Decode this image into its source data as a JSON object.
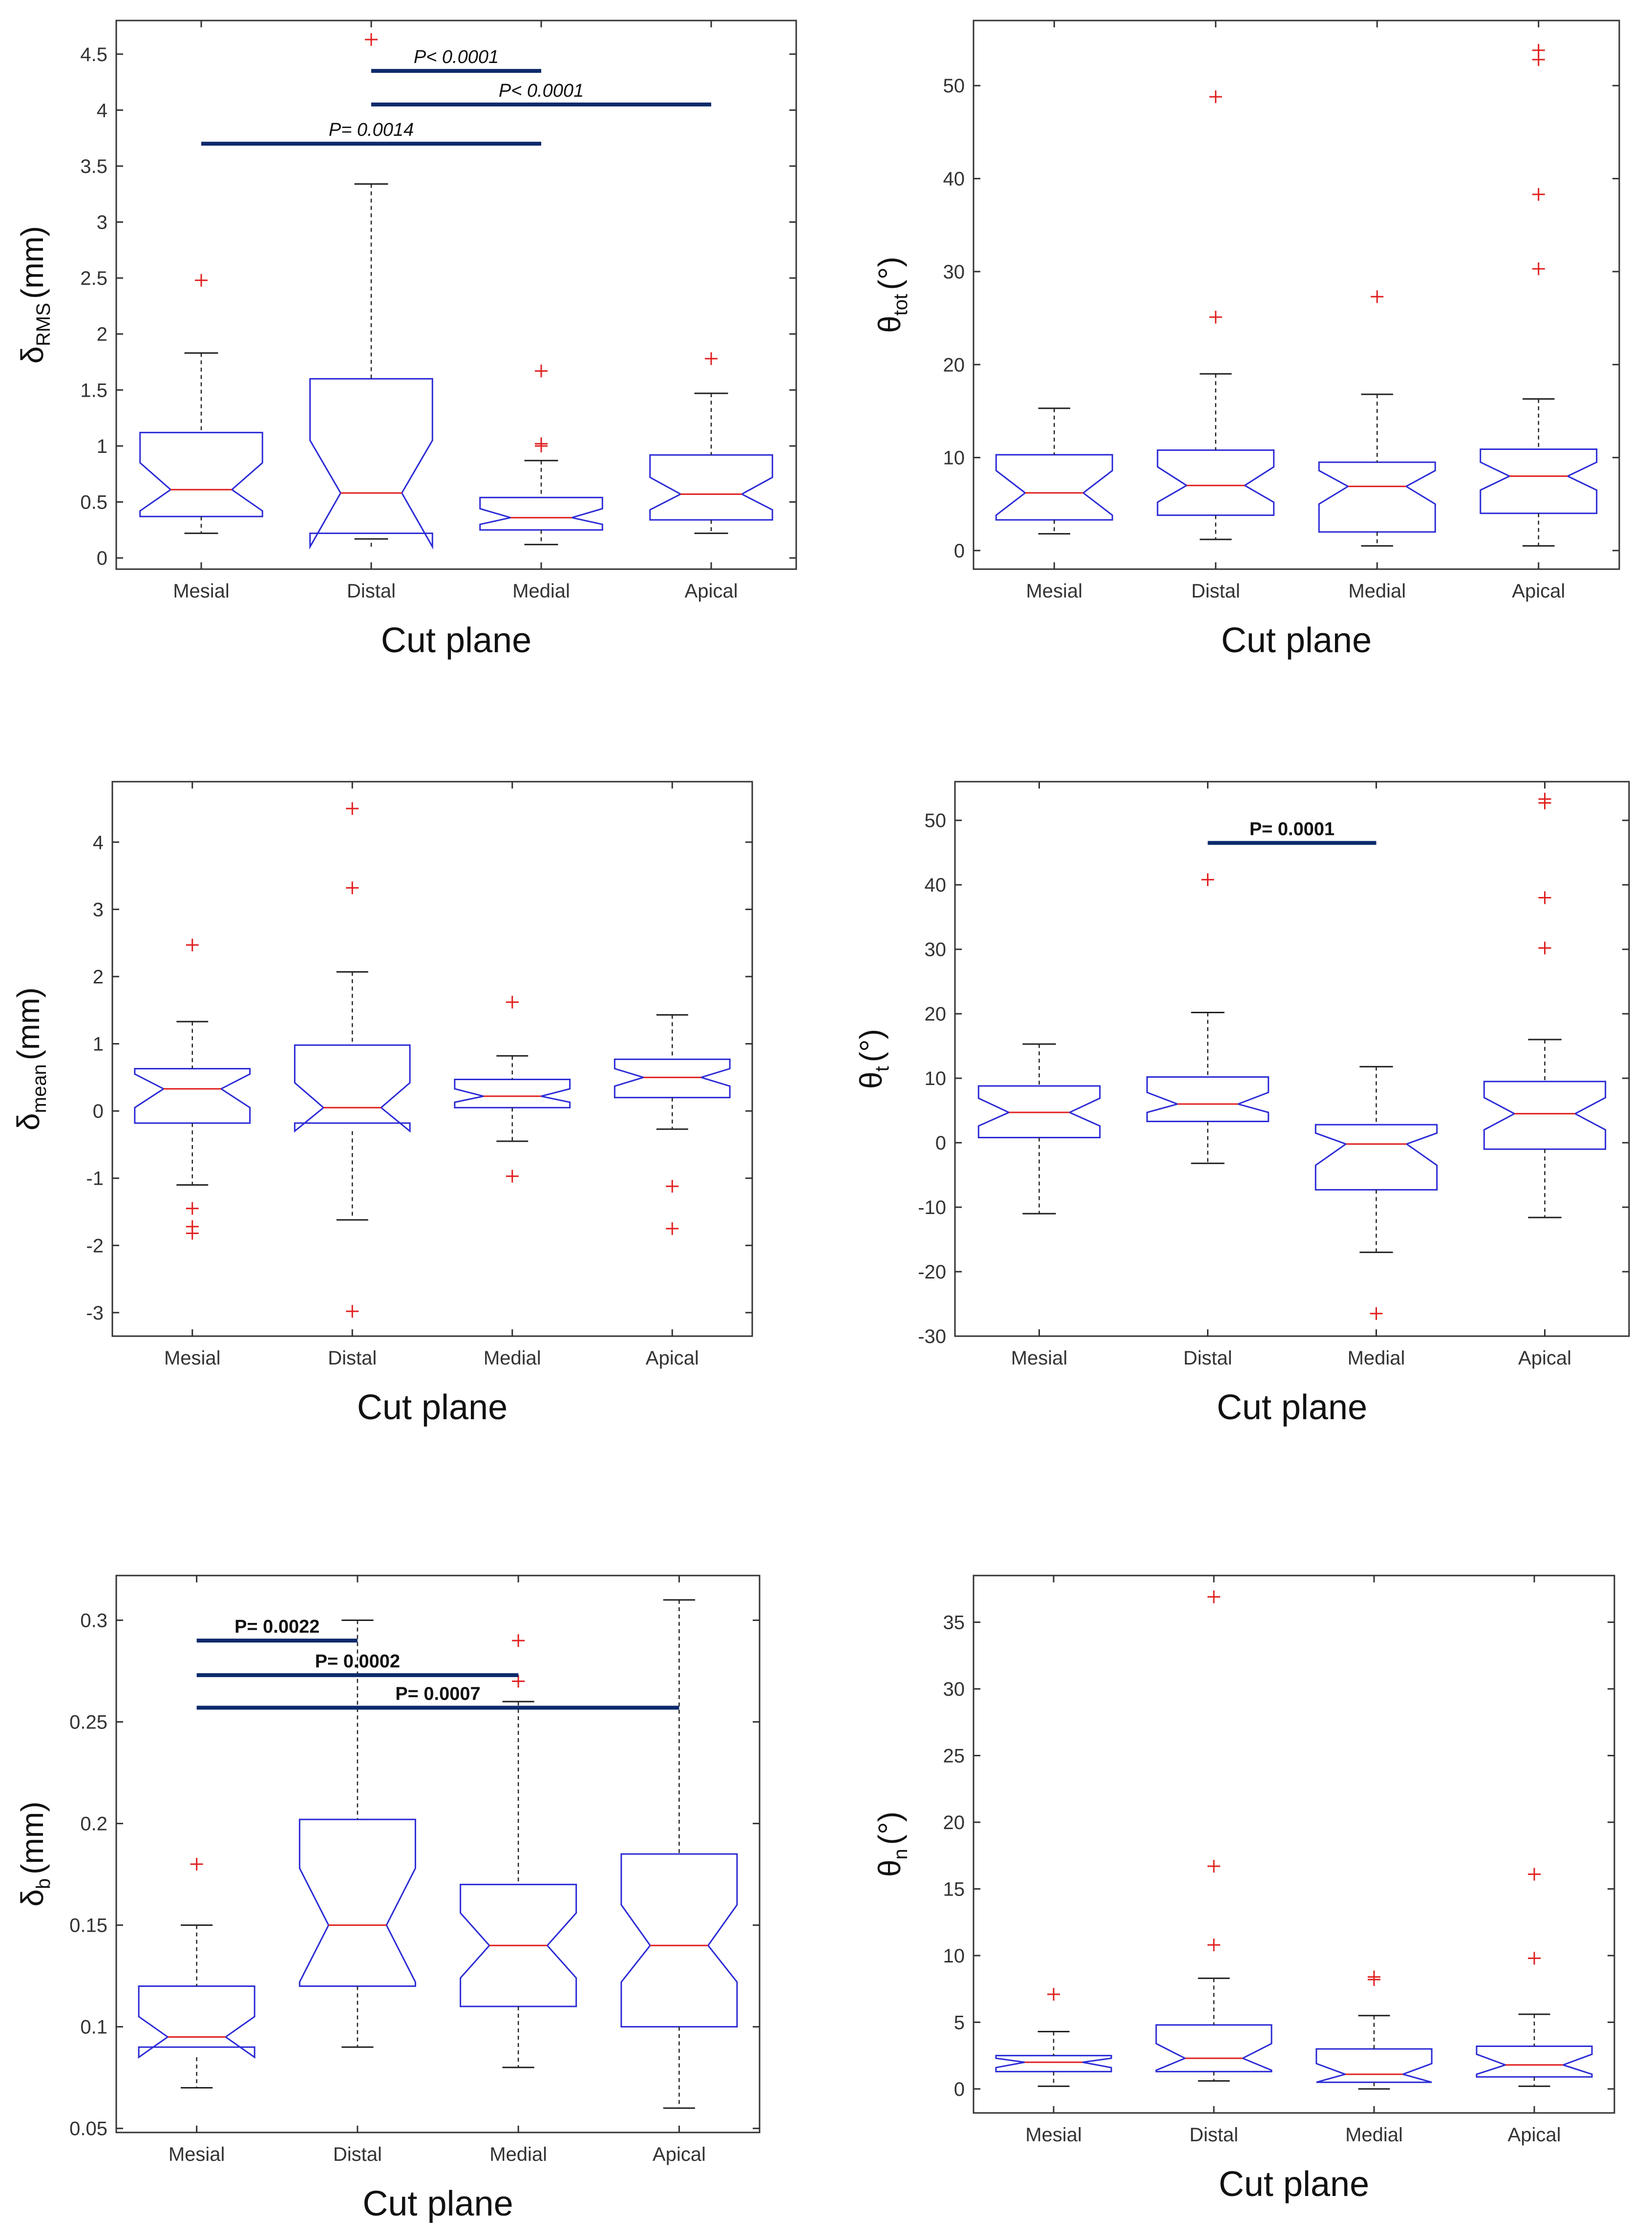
{
  "chart_data": [
    {
      "type": "boxplot",
      "id": "p1",
      "xlabel": "Cut plane",
      "ylabel_main": "δ",
      "ylabel_sub": "RMS",
      "ylabel_unit": "(mm)",
      "categories": [
        "Mesial",
        "Distal",
        "Medial",
        "Apical"
      ],
      "ylim": [
        -0.1,
        4.8
      ],
      "yticks": [
        0,
        0.5,
        1,
        1.5,
        2,
        2.5,
        3,
        3.5,
        4,
        4.5
      ],
      "ytick_labels": [
        "0",
        "0.5",
        "1",
        "1.5",
        "2",
        "2.5",
        "3",
        "3.5",
        "4",
        "4.5"
      ],
      "boxes": [
        {
          "whislo": 0.22,
          "q1": 0.37,
          "med": 0.61,
          "q3": 1.12,
          "whishi": 1.83,
          "notch_lo": 0.42,
          "notch_hi": 0.85,
          "fliers": [
            2.48
          ]
        },
        {
          "whislo": 0.17,
          "q1": 0.22,
          "med": 0.58,
          "q3": 1.6,
          "whishi": 3.34,
          "notch_lo": 0.1,
          "notch_hi": 1.05,
          "fliers": [
            4.63
          ]
        },
        {
          "whislo": 0.12,
          "q1": 0.25,
          "med": 0.36,
          "q3": 0.54,
          "whishi": 0.87,
          "notch_lo": 0.3,
          "notch_hi": 0.44,
          "fliers": [
            1.0,
            1.02,
            1.67
          ]
        },
        {
          "whislo": 0.22,
          "q1": 0.34,
          "med": 0.57,
          "q3": 0.92,
          "whishi": 1.47,
          "notch_lo": 0.43,
          "notch_hi": 0.72,
          "fliers": [
            1.78
          ]
        }
      ],
      "significance": [
        {
          "from": 1,
          "to": 2,
          "y": 4.35,
          "label": "P< 0.0001"
        },
        {
          "from": 1,
          "to": 3,
          "y": 4.05,
          "label": "P< 0.0001"
        },
        {
          "from": 0,
          "to": 2,
          "y": 3.7,
          "label": "P= 0.0014"
        }
      ],
      "sig_style": "italic"
    },
    {
      "type": "boxplot",
      "id": "p2",
      "xlabel": "Cut plane",
      "ylabel_main": "θ",
      "ylabel_sub": "tot",
      "ylabel_unit": "(°)",
      "categories": [
        "Mesial",
        "Distal",
        "Medial",
        "Apical"
      ],
      "ylim": [
        -2,
        57
      ],
      "yticks": [
        0,
        10,
        20,
        30,
        40,
        50
      ],
      "ytick_labels": [
        "0",
        "10",
        "20",
        "30",
        "40",
        "50"
      ],
      "boxes": [
        {
          "whislo": 1.8,
          "q1": 3.3,
          "med": 6.2,
          "q3": 10.3,
          "whishi": 15.3,
          "notch_lo": 3.8,
          "notch_hi": 8.6,
          "fliers": []
        },
        {
          "whislo": 1.2,
          "q1": 3.8,
          "med": 7.0,
          "q3": 10.8,
          "whishi": 19.0,
          "notch_lo": 5.2,
          "notch_hi": 9.0,
          "fliers": [
            25.1,
            48.8
          ]
        },
        {
          "whislo": 0.5,
          "q1": 2.0,
          "med": 6.9,
          "q3": 9.5,
          "whishi": 16.8,
          "notch_lo": 5.0,
          "notch_hi": 8.6,
          "fliers": [
            27.3
          ]
        },
        {
          "whislo": 0.5,
          "q1": 4.0,
          "med": 8.0,
          "q3": 10.9,
          "whishi": 16.3,
          "notch_lo": 6.5,
          "notch_hi": 9.5,
          "fliers": [
            30.3,
            38.3,
            52.8,
            53.8
          ]
        }
      ],
      "significance": [],
      "sig_style": "bold"
    },
    {
      "type": "boxplot",
      "id": "p3",
      "xlabel": "Cut plane",
      "ylabel_main": "δ",
      "ylabel_sub": "mean",
      "ylabel_unit": "(mm)",
      "categories": [
        "Mesial",
        "Distal",
        "Medial",
        "Apical"
      ],
      "ylim": [
        -3.35,
        4.9
      ],
      "yticks": [
        -3,
        -2,
        -1,
        0,
        1,
        2,
        3,
        4
      ],
      "ytick_labels": [
        "-3",
        "-2",
        "-1",
        "0",
        "1",
        "2",
        "3",
        "4"
      ],
      "boxes": [
        {
          "whislo": -1.1,
          "q1": -0.18,
          "med": 0.33,
          "q3": 0.63,
          "whishi": 1.33,
          "notch_lo": 0.05,
          "notch_hi": 0.55,
          "fliers": [
            2.47,
            -1.45,
            -1.72,
            -1.82
          ]
        },
        {
          "whislo": -1.62,
          "q1": -0.18,
          "med": 0.05,
          "q3": 0.98,
          "whishi": 2.07,
          "notch_lo": -0.3,
          "notch_hi": 0.42,
          "fliers": [
            3.32,
            4.5,
            -2.98
          ]
        },
        {
          "whislo": -0.45,
          "q1": 0.05,
          "med": 0.22,
          "q3": 0.47,
          "whishi": 0.82,
          "notch_lo": 0.13,
          "notch_hi": 0.33,
          "fliers": [
            1.62,
            -0.97
          ]
        },
        {
          "whislo": -0.27,
          "q1": 0.2,
          "med": 0.5,
          "q3": 0.77,
          "whishi": 1.43,
          "notch_lo": 0.37,
          "notch_hi": 0.63,
          "fliers": [
            -1.12,
            -1.75
          ]
        }
      ],
      "significance": [],
      "sig_style": "bold"
    },
    {
      "type": "boxplot",
      "id": "p4",
      "xlabel": "Cut plane",
      "ylabel_main": "θ",
      "ylabel_sub": "t",
      "ylabel_unit": "(°)",
      "categories": [
        "Mesial",
        "Distal",
        "Medial",
        "Apical"
      ],
      "ylim": [
        -30,
        56
      ],
      "yticks": [
        -30,
        -20,
        -10,
        0,
        10,
        20,
        30,
        40,
        50
      ],
      "ytick_labels": [
        "-30",
        "-20",
        "-10",
        "0",
        "10",
        "20",
        "30",
        "40",
        "50"
      ],
      "boxes": [
        {
          "whislo": -11.0,
          "q1": 0.8,
          "med": 4.7,
          "q3": 8.8,
          "whishi": 15.3,
          "notch_lo": 2.6,
          "notch_hi": 6.9,
          "fliers": []
        },
        {
          "whislo": -3.2,
          "q1": 3.3,
          "med": 6.0,
          "q3": 10.2,
          "whishi": 20.2,
          "notch_lo": 4.7,
          "notch_hi": 7.8,
          "fliers": [
            40.8
          ]
        },
        {
          "whislo": -17.0,
          "q1": -7.3,
          "med": -0.2,
          "q3": 2.8,
          "whishi": 11.8,
          "notch_lo": -3.5,
          "notch_hi": 1.5,
          "fliers": [
            -26.5
          ]
        },
        {
          "whislo": -11.6,
          "q1": -1.0,
          "med": 4.5,
          "q3": 9.5,
          "whishi": 16.0,
          "notch_lo": 2.0,
          "notch_hi": 7.0,
          "fliers": [
            30.2,
            38.0,
            52.7,
            53.3
          ]
        }
      ],
      "significance": [
        {
          "from": 1,
          "to": 2,
          "y": 46.5,
          "label": "P= 0.0001"
        }
      ],
      "sig_style": "bold"
    },
    {
      "type": "boxplot",
      "id": "p5",
      "xlabel": "Cut plane",
      "ylabel_main": "δ",
      "ylabel_sub": "b",
      "ylabel_unit": "(mm)",
      "categories": [
        "Mesial",
        "Distal",
        "Medial",
        "Apical"
      ],
      "ylim": [
        0.048,
        0.322
      ],
      "yticks": [
        0.05,
        0.1,
        0.15,
        0.2,
        0.25,
        0.3
      ],
      "ytick_labels": [
        "0.05",
        "0.1",
        "0.15",
        "0.2",
        "0.25",
        "0.3"
      ],
      "boxes": [
        {
          "whislo": 0.07,
          "q1": 0.09,
          "med": 0.095,
          "q3": 0.12,
          "whishi": 0.15,
          "notch_lo": 0.085,
          "notch_hi": 0.105,
          "fliers": [
            0.18
          ]
        },
        {
          "whislo": 0.09,
          "q1": 0.12,
          "med": 0.15,
          "q3": 0.202,
          "whishi": 0.3,
          "notch_lo": 0.122,
          "notch_hi": 0.178,
          "fliers": []
        },
        {
          "whislo": 0.08,
          "q1": 0.11,
          "med": 0.14,
          "q3": 0.17,
          "whishi": 0.26,
          "notch_lo": 0.124,
          "notch_hi": 0.156,
          "fliers": [
            0.27,
            0.29
          ]
        },
        {
          "whislo": 0.06,
          "q1": 0.1,
          "med": 0.14,
          "q3": 0.185,
          "whishi": 0.31,
          "notch_lo": 0.122,
          "notch_hi": 0.16,
          "fliers": []
        }
      ],
      "significance": [
        {
          "from": 0,
          "to": 1,
          "y": 0.29,
          "label": "P= 0.0022"
        },
        {
          "from": 0,
          "to": 2,
          "y": 0.273,
          "label": "P= 0.0002"
        },
        {
          "from": 0,
          "to": 3,
          "y": 0.257,
          "label": "P= 0.0007"
        }
      ],
      "sig_style": "bold"
    },
    {
      "type": "boxplot",
      "id": "p6",
      "xlabel": "Cut plane",
      "ylabel_main": "θ",
      "ylabel_sub": "n",
      "ylabel_unit": "(°)",
      "categories": [
        "Mesial",
        "Distal",
        "Medial",
        "Apical"
      ],
      "ylim": [
        -1.8,
        38.5
      ],
      "yticks": [
        0,
        5,
        10,
        15,
        20,
        25,
        30,
        35
      ],
      "ytick_labels": [
        "0",
        "5",
        "10",
        "15",
        "20",
        "25",
        "30",
        "35"
      ],
      "boxes": [
        {
          "whislo": 0.2,
          "q1": 1.3,
          "med": 2.0,
          "q3": 2.5,
          "whishi": 4.3,
          "notch_lo": 1.6,
          "notch_hi": 2.3,
          "fliers": [
            7.1
          ]
        },
        {
          "whislo": 0.6,
          "q1": 1.3,
          "med": 2.3,
          "q3": 4.8,
          "whishi": 8.3,
          "notch_lo": 1.4,
          "notch_hi": 3.4,
          "fliers": [
            10.8,
            16.7,
            36.9
          ]
        },
        {
          "whislo": 0.0,
          "q1": 0.5,
          "med": 1.1,
          "q3": 3.0,
          "whishi": 5.5,
          "notch_lo": 0.5,
          "notch_hi": 1.9,
          "fliers": [
            8.2,
            8.4
          ]
        },
        {
          "whislo": 0.2,
          "q1": 0.9,
          "med": 1.8,
          "q3": 3.2,
          "whishi": 5.6,
          "notch_lo": 1.1,
          "notch_hi": 2.6,
          "fliers": [
            9.8,
            16.1
          ]
        }
      ],
      "significance": [],
      "sig_style": "bold"
    }
  ]
}
